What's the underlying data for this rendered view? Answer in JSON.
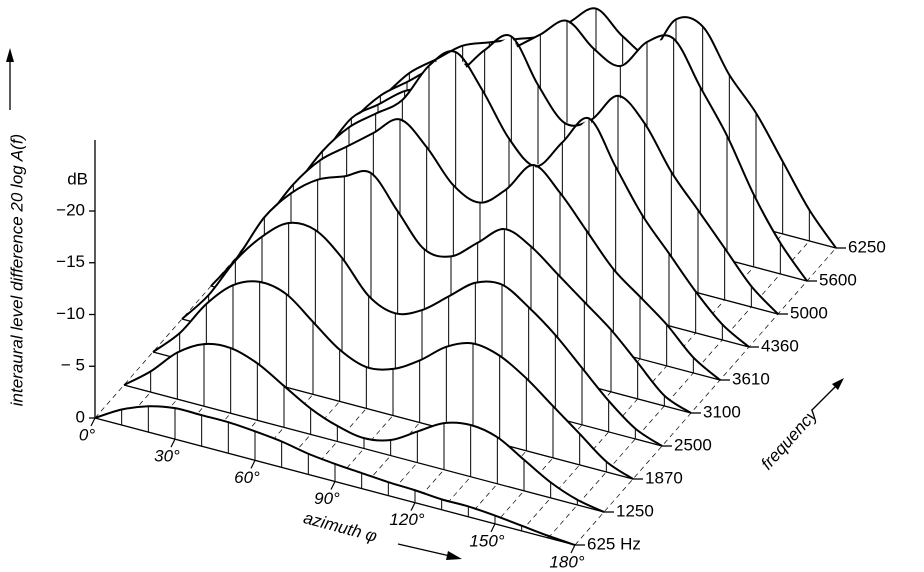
{
  "chart_data": {
    "type": "waterfall",
    "x_label": "azimuth φ",
    "y_label": "interaural level difference 20 log A(f)",
    "y_unit": "dB",
    "z_label": "frequency",
    "x": [
      0,
      10,
      20,
      30,
      40,
      50,
      60,
      70,
      80,
      90,
      100,
      110,
      120,
      130,
      140,
      150,
      160,
      170,
      180
    ],
    "xlim": [
      0,
      180
    ],
    "xticks": [
      {
        "value": 0,
        "label": "0°"
      },
      {
        "value": 30,
        "label": "30°"
      },
      {
        "value": 60,
        "label": "60°"
      },
      {
        "value": 90,
        "label": "90°"
      },
      {
        "value": 120,
        "label": "120°"
      },
      {
        "value": 150,
        "label": "150°"
      },
      {
        "value": 180,
        "label": "180°"
      }
    ],
    "ylim": [
      0,
      -25
    ],
    "yticks": [
      0,
      {
        "value": -5,
        "label": "− 5"
      },
      {
        "value": -10,
        "label": "−10"
      },
      {
        "value": -15,
        "label": "−15"
      },
      {
        "value": -20,
        "label": "−20"
      }
    ],
    "color": "#000000",
    "series": [
      {
        "name": "625 Hz",
        "values": [
          0,
          -1.5,
          -2.5,
          -3,
          -3,
          -3,
          -2.8,
          -2.5,
          -2,
          -1.7,
          -1.5,
          -1.3,
          -1.2,
          -1,
          -1,
          -0.8,
          -0.5,
          -0.2,
          0
        ]
      },
      {
        "name": "1250",
        "values": [
          0,
          -2,
          -4.5,
          -6,
          -6.3,
          -5.5,
          -4,
          -2.5,
          -1.5,
          -1,
          -1.5,
          -3,
          -4.5,
          -5,
          -4.5,
          -3,
          -1.5,
          -0.5,
          0
        ]
      },
      {
        "name": "1870",
        "values": [
          0,
          -2.5,
          -6,
          -8.5,
          -9.5,
          -9,
          -7,
          -5,
          -4,
          -4.5,
          -6,
          -8,
          -9,
          -8.5,
          -7,
          -5,
          -3,
          -1,
          0
        ]
      },
      {
        "name": "2500",
        "values": [
          0,
          -3,
          -7,
          -10,
          -12,
          -12,
          -10,
          -7,
          -6,
          -7,
          -9,
          -11,
          -11.5,
          -10,
          -8,
          -5.5,
          -3,
          -1,
          0
        ]
      },
      {
        "name": "3100",
        "values": [
          0,
          -3.5,
          -8,
          -11,
          -13,
          -14,
          -15,
          -12,
          -9,
          -9,
          -11,
          -13,
          -12,
          -10,
          -8,
          -6,
          -3.5,
          -1,
          0
        ]
      },
      {
        "name": "3610",
        "values": [
          0,
          -4,
          -8,
          -11,
          -13,
          -15,
          -17,
          -15,
          -12,
          -11,
          -13,
          -16,
          -14,
          -11,
          -8,
          -6,
          -4,
          -1.5,
          0
        ]
      },
      {
        "name": "4360",
        "values": [
          0,
          -4,
          -8,
          -11,
          -13,
          -15,
          -19,
          -21,
          -18,
          -14,
          -12,
          -15,
          -18,
          -14,
          -10,
          -7,
          -4,
          -1.5,
          0
        ]
      },
      {
        "name": "5000",
        "values": [
          0,
          -4,
          -8,
          -10,
          -12,
          -13,
          -15,
          -18,
          -20,
          -16,
          -13,
          -14,
          -17,
          -15,
          -11,
          -8,
          -5,
          -2,
          0
        ]
      },
      {
        "name": "5600",
        "values": [
          0,
          -4,
          -7,
          -9,
          -11,
          -12,
          -13,
          -15,
          -17,
          -19,
          -17,
          -16,
          -19,
          -20,
          -16,
          -12,
          -7,
          -3,
          0
        ]
      },
      {
        "name": "6250",
        "values": [
          0,
          -3,
          -6,
          -8,
          -10,
          -11,
          -12,
          -13,
          -15,
          -17,
          -15,
          -14,
          -18,
          -18,
          -14,
          -11,
          -7,
          -3,
          0
        ]
      }
    ]
  }
}
